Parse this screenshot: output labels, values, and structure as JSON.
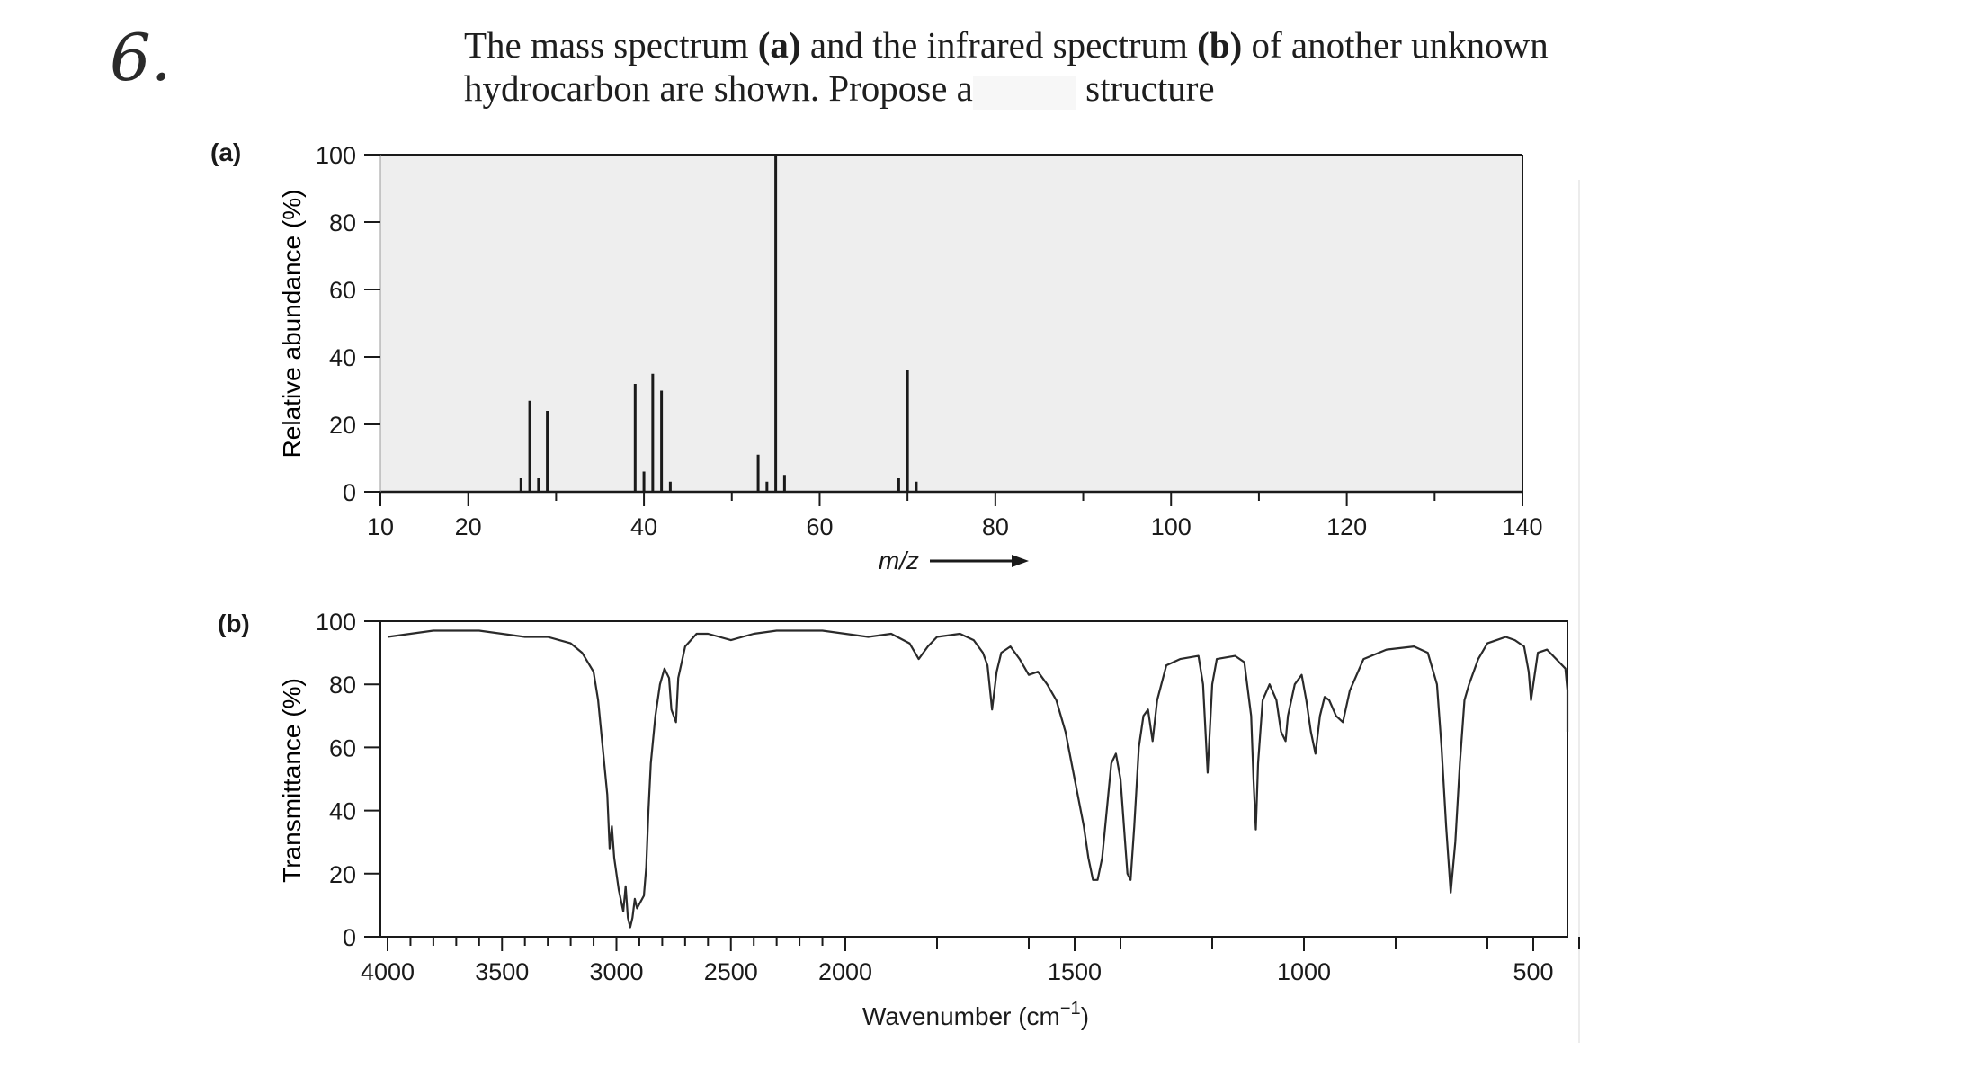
{
  "problem_number": "6.",
  "prompt": {
    "line1_pre": "The mass spectrum ",
    "line1_a": "(a)",
    "line1_mid": " and the infrared spectrum ",
    "line1_b": "(b)",
    "line1_post": " of another unknown",
    "line2_pre": "hydrocarbon are shown. Propose a",
    "line2_post": " structure"
  },
  "chart_data": [
    {
      "type": "bar",
      "panel_label": "(a)",
      "xlabel": "m/z",
      "ylabel": "Relative abundance (%)",
      "xlim": [
        10,
        140
      ],
      "ylim": [
        0,
        100
      ],
      "xticks": [
        10,
        20,
        40,
        60,
        80,
        100,
        120,
        140
      ],
      "yticks": [
        0,
        20,
        40,
        60,
        80,
        100
      ],
      "background": "#eeeeee",
      "peaks": [
        {
          "x": 26,
          "y": 4
        },
        {
          "x": 27,
          "y": 27
        },
        {
          "x": 28,
          "y": 4
        },
        {
          "x": 29,
          "y": 24
        },
        {
          "x": 39,
          "y": 32
        },
        {
          "x": 40,
          "y": 6
        },
        {
          "x": 41,
          "y": 35
        },
        {
          "x": 42,
          "y": 30
        },
        {
          "x": 43,
          "y": 3
        },
        {
          "x": 53,
          "y": 11
        },
        {
          "x": 54,
          "y": 3
        },
        {
          "x": 55,
          "y": 100
        },
        {
          "x": 56,
          "y": 5
        },
        {
          "x": 69,
          "y": 4
        },
        {
          "x": 70,
          "y": 36
        },
        {
          "x": 71,
          "y": 3
        }
      ]
    },
    {
      "type": "line",
      "panel_label": "(b)",
      "xlabel": "Wavenumber (cm⁻¹)",
      "ylabel": "Transmittance (%)",
      "xlim": [
        4000,
        400
      ],
      "ylim": [
        0,
        100
      ],
      "xticks": [
        4000,
        3500,
        3000,
        2500,
        2000,
        1500,
        1000,
        500
      ],
      "yticks": [
        0,
        20,
        40,
        60,
        80,
        100
      ],
      "series": [
        {
          "points": [
            [
              4000,
              95
            ],
            [
              3900,
              96
            ],
            [
              3800,
              97
            ],
            [
              3700,
              97
            ],
            [
              3600,
              97
            ],
            [
              3500,
              96
            ],
            [
              3400,
              95
            ],
            [
              3300,
              95
            ],
            [
              3250,
              94
            ],
            [
              3200,
              93
            ],
            [
              3150,
              90
            ],
            [
              3100,
              84
            ],
            [
              3080,
              75
            ],
            [
              3060,
              60
            ],
            [
              3040,
              45
            ],
            [
              3030,
              28
            ],
            [
              3020,
              35
            ],
            [
              3010,
              25
            ],
            [
              2990,
              15
            ],
            [
              2970,
              8
            ],
            [
              2960,
              16
            ],
            [
              2950,
              6
            ],
            [
              2940,
              3
            ],
            [
              2930,
              6
            ],
            [
              2920,
              12
            ],
            [
              2910,
              9
            ],
            [
              2895,
              11
            ],
            [
              2880,
              13
            ],
            [
              2870,
              22
            ],
            [
              2860,
              40
            ],
            [
              2850,
              55
            ],
            [
              2830,
              70
            ],
            [
              2810,
              80
            ],
            [
              2790,
              85
            ],
            [
              2770,
              82
            ],
            [
              2760,
              72
            ],
            [
              2740,
              68
            ],
            [
              2730,
              82
            ],
            [
              2700,
              92
            ],
            [
              2650,
              96
            ],
            [
              2600,
              96
            ],
            [
              2550,
              95
            ],
            [
              2500,
              94
            ],
            [
              2450,
              95
            ],
            [
              2400,
              96
            ],
            [
              2300,
              97
            ],
            [
              2200,
              97
            ],
            [
              2100,
              97
            ],
            [
              2000,
              96
            ],
            [
              1950,
              95
            ],
            [
              1900,
              96
            ],
            [
              1860,
              93
            ],
            [
              1840,
              88
            ],
            [
              1820,
              92
            ],
            [
              1800,
              95
            ],
            [
              1750,
              96
            ],
            [
              1720,
              94
            ],
            [
              1700,
              90
            ],
            [
              1690,
              86
            ],
            [
              1680,
              72
            ],
            [
              1670,
              84
            ],
            [
              1660,
              90
            ],
            [
              1640,
              92
            ],
            [
              1620,
              88
            ],
            [
              1600,
              83
            ],
            [
              1580,
              84
            ],
            [
              1560,
              80
            ],
            [
              1540,
              75
            ],
            [
              1520,
              65
            ],
            [
              1500,
              50
            ],
            [
              1480,
              35
            ],
            [
              1470,
              25
            ],
            [
              1460,
              18
            ],
            [
              1450,
              18
            ],
            [
              1440,
              25
            ],
            [
              1430,
              40
            ],
            [
              1420,
              55
            ],
            [
              1410,
              58
            ],
            [
              1400,
              50
            ],
            [
              1390,
              30
            ],
            [
              1385,
              20
            ],
            [
              1378,
              18
            ],
            [
              1370,
              35
            ],
            [
              1360,
              60
            ],
            [
              1350,
              70
            ],
            [
              1340,
              72
            ],
            [
              1330,
              62
            ],
            [
              1320,
              75
            ],
            [
              1300,
              86
            ],
            [
              1270,
              88
            ],
            [
              1230,
              89
            ],
            [
              1220,
              80
            ],
            [
              1210,
              52
            ],
            [
              1200,
              80
            ],
            [
              1190,
              88
            ],
            [
              1150,
              89
            ],
            [
              1130,
              87
            ],
            [
              1115,
              70
            ],
            [
              1110,
              50
            ],
            [
              1105,
              34
            ],
            [
              1100,
              55
            ],
            [
              1090,
              75
            ],
            [
              1075,
              80
            ],
            [
              1060,
              75
            ],
            [
              1050,
              65
            ],
            [
              1040,
              62
            ],
            [
              1035,
              70
            ],
            [
              1020,
              80
            ],
            [
              1005,
              83
            ],
            [
              995,
              75
            ],
            [
              985,
              65
            ],
            [
              975,
              58
            ],
            [
              965,
              70
            ],
            [
              955,
              76
            ],
            [
              945,
              75
            ],
            [
              930,
              70
            ],
            [
              915,
              68
            ],
            [
              900,
              78
            ],
            [
              870,
              88
            ],
            [
              820,
              91
            ],
            [
              760,
              92
            ],
            [
              730,
              90
            ],
            [
              710,
              80
            ],
            [
              700,
              60
            ],
            [
              690,
              35
            ],
            [
              680,
              14
            ],
            [
              670,
              30
            ],
            [
              660,
              55
            ],
            [
              650,
              75
            ],
            [
              640,
              80
            ],
            [
              620,
              88
            ],
            [
              600,
              93
            ],
            [
              580,
              94
            ],
            [
              560,
              95
            ],
            [
              540,
              94
            ],
            [
              520,
              92
            ],
            [
              510,
              84
            ],
            [
              505,
              75
            ],
            [
              500,
              80
            ],
            [
              490,
              90
            ],
            [
              470,
              91
            ],
            [
              450,
              88
            ],
            [
              430,
              85
            ],
            [
              410,
              78
            ],
            [
              400,
              65
            ]
          ]
        }
      ]
    }
  ]
}
